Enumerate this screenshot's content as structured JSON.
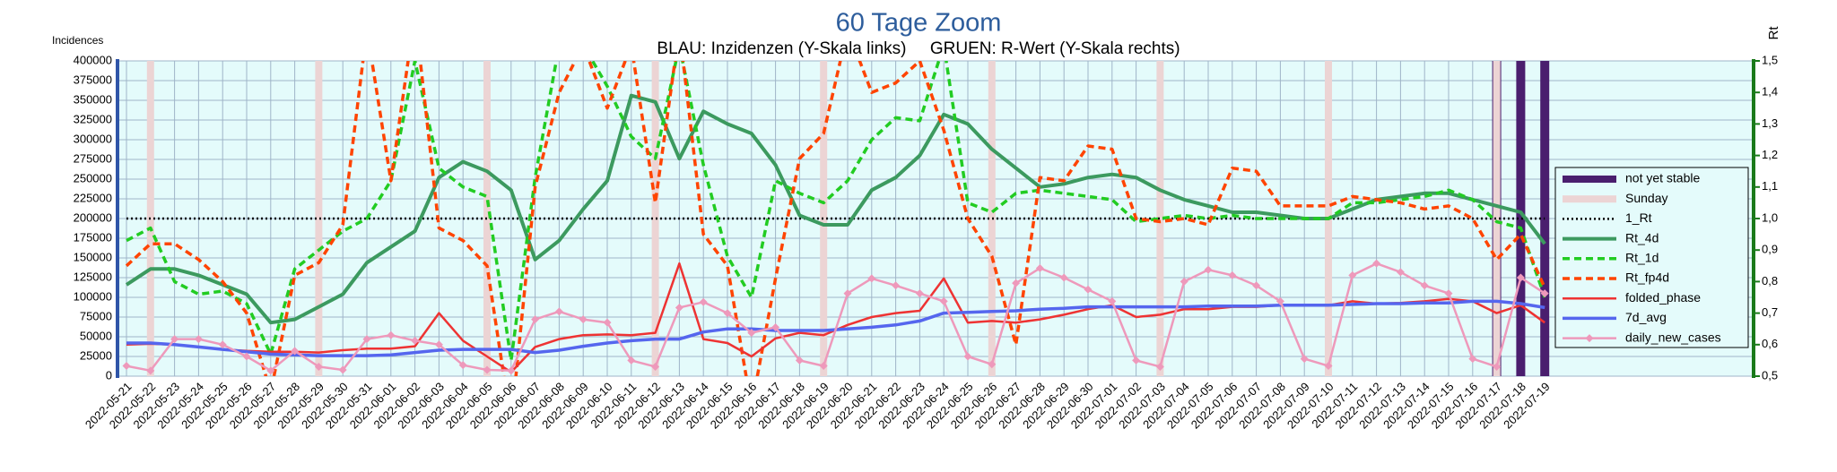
{
  "chart_data": {
    "type": "line",
    "title": "60 Tage Zoom",
    "subtitle": "BLAU: Inzidenzen (Y-Skala links)     GRUEN: R-Wert (Y-Skala rechts)",
    "y_label": "Incidences",
    "y2_label": "Rt",
    "categories": [
      "2022-05-21",
      "2022-05-22",
      "2022-05-23",
      "2022-05-24",
      "2022-05-25",
      "2022-05-26",
      "2022-05-27",
      "2022-05-28",
      "2022-05-29",
      "2022-05-30",
      "2022-05-31",
      "2022-06-01",
      "2022-06-02",
      "2022-06-03",
      "2022-06-04",
      "2022-06-05",
      "2022-06-06",
      "2022-06-07",
      "2022-06-08",
      "2022-06-09",
      "2022-06-10",
      "2022-06-11",
      "2022-06-12",
      "2022-06-13",
      "2022-06-14",
      "2022-06-15",
      "2022-06-16",
      "2022-06-17",
      "2022-06-18",
      "2022-06-19",
      "2022-06-20",
      "2022-06-21",
      "2022-06-22",
      "2022-06-23",
      "2022-06-24",
      "2022-06-25",
      "2022-06-26",
      "2022-06-27",
      "2022-06-28",
      "2022-06-29",
      "2022-06-30",
      "2022-07-01",
      "2022-07-02",
      "2022-07-03",
      "2022-07-04",
      "2022-07-05",
      "2022-07-06",
      "2022-07-07",
      "2022-07-08",
      "2022-07-09",
      "2022-07-10",
      "2022-07-11",
      "2022-07-12",
      "2022-07-13",
      "2022-07-14",
      "2022-07-15",
      "2022-07-16",
      "2022-07-17",
      "2022-07-18",
      "2022-07-19"
    ],
    "ylim": [
      0,
      400000
    ],
    "yticks": [
      0,
      25000,
      50000,
      75000,
      100000,
      125000,
      150000,
      175000,
      200000,
      225000,
      250000,
      275000,
      300000,
      325000,
      350000,
      375000,
      400000
    ],
    "y2lim": [
      0.5,
      1.5
    ],
    "y2ticks": [
      {
        "value": 0.5,
        "label": "0,5"
      },
      {
        "value": 0.6,
        "label": "0,6"
      },
      {
        "value": 0.7,
        "label": "0,7"
      },
      {
        "value": 0.8,
        "label": "0,8"
      },
      {
        "value": 0.9,
        "label": "0,9"
      },
      {
        "value": 1.0,
        "label": "1,0"
      },
      {
        "value": 1.1,
        "label": "1,1"
      },
      {
        "value": 1.2,
        "label": "1,2"
      },
      {
        "value": 1.3,
        "label": "1,3"
      },
      {
        "value": 1.4,
        "label": "1,4"
      },
      {
        "value": 1.5,
        "label": "1,5"
      }
    ],
    "grid": true,
    "legend": "right",
    "series": [
      {
        "name": "not yet stable",
        "kind": "bar",
        "color": "#4a1e6e",
        "axis": "y",
        "values": [
          null,
          null,
          null,
          null,
          null,
          null,
          null,
          null,
          null,
          null,
          null,
          null,
          null,
          null,
          null,
          null,
          null,
          null,
          null,
          null,
          null,
          null,
          null,
          null,
          null,
          null,
          null,
          null,
          null,
          null,
          null,
          null,
          null,
          null,
          null,
          null,
          null,
          null,
          null,
          null,
          null,
          null,
          null,
          null,
          null,
          null,
          null,
          null,
          null,
          null,
          null,
          null,
          null,
          null,
          null,
          null,
          null,
          400000,
          400000,
          400000
        ]
      },
      {
        "name": "Sunday",
        "kind": "bar",
        "color": "#ecd4d4",
        "axis": "y",
        "values": [
          null,
          400000,
          null,
          null,
          null,
          null,
          null,
          null,
          400000,
          null,
          null,
          null,
          null,
          null,
          null,
          400000,
          null,
          null,
          null,
          null,
          null,
          null,
          400000,
          null,
          null,
          null,
          null,
          null,
          null,
          400000,
          null,
          null,
          null,
          null,
          null,
          null,
          400000,
          null,
          null,
          null,
          null,
          null,
          null,
          400000,
          null,
          null,
          null,
          null,
          null,
          null,
          400000,
          null,
          null,
          null,
          null,
          null,
          null,
          400000,
          null,
          null
        ]
      },
      {
        "name": "1_Rt",
        "kind": "line",
        "dash": "dotted",
        "width": 2.5,
        "color": "#000000",
        "axis": "y2",
        "values": [
          1,
          1,
          1,
          1,
          1,
          1,
          1,
          1,
          1,
          1,
          1,
          1,
          1,
          1,
          1,
          1,
          1,
          1,
          1,
          1,
          1,
          1,
          1,
          1,
          1,
          1,
          1,
          1,
          1,
          1,
          1,
          1,
          1,
          1,
          1,
          1,
          1,
          1,
          1,
          1,
          1,
          1,
          1,
          1,
          1,
          1,
          1,
          1,
          1,
          1,
          1,
          1,
          1,
          1,
          1,
          1,
          1,
          1,
          1,
          1
        ]
      },
      {
        "name": "Rt_4d",
        "kind": "line",
        "width": 4,
        "color": "#3c9a5f",
        "axis": "y2",
        "values": [
          0.79,
          0.84,
          0.84,
          0.82,
          0.79,
          0.76,
          0.67,
          0.68,
          0.72,
          0.76,
          0.86,
          0.91,
          0.96,
          1.13,
          1.18,
          1.15,
          1.09,
          0.87,
          0.93,
          1.03,
          1.12,
          1.39,
          1.37,
          1.19,
          1.34,
          1.3,
          1.27,
          1.17,
          1.01,
          0.98,
          0.98,
          1.09,
          1.13,
          1.2,
          1.33,
          1.3,
          1.22,
          1.16,
          1.1,
          1.11,
          1.13,
          1.14,
          1.13,
          1.09,
          1.06,
          1.04,
          1.02,
          1.02,
          1.01,
          1.0,
          1.0,
          1.03,
          1.06,
          1.07,
          1.08,
          1.08,
          1.06,
          1.04,
          1.02,
          0.92
        ]
      },
      {
        "name": "Rt_1d",
        "kind": "line",
        "dash": "dashed",
        "width": 3.5,
        "color": "#22cc22",
        "axis": "y2",
        "values": [
          0.93,
          0.97,
          0.8,
          0.76,
          0.77,
          0.73,
          0.57,
          0.84,
          0.9,
          0.96,
          1.0,
          1.12,
          1.5,
          1.16,
          1.1,
          1.07,
          0.55,
          1.13,
          1.55,
          1.55,
          1.42,
          1.26,
          1.19,
          1.55,
          1.17,
          0.88,
          0.75,
          1.12,
          1.08,
          1.05,
          1.12,
          1.25,
          1.32,
          1.31,
          1.55,
          1.05,
          1.02,
          1.08,
          1.09,
          1.08,
          1.07,
          1.06,
          0.99,
          1.0,
          1.01,
          1.0,
          1.01,
          1.0,
          1.0,
          1.0,
          1.0,
          1.05,
          1.05,
          1.06,
          1.07,
          1.09,
          1.06,
          0.99,
          0.97,
          0.75
        ]
      },
      {
        "name": "Rt_fp4d",
        "kind": "line",
        "dash": "dashed",
        "width": 3.5,
        "color": "#ff4400",
        "axis": "y2",
        "values": [
          0.85,
          0.92,
          0.92,
          0.87,
          0.8,
          0.7,
          0.45,
          0.82,
          0.86,
          0.98,
          1.6,
          1.12,
          1.65,
          0.97,
          0.93,
          0.85,
          0.35,
          1.1,
          1.4,
          1.55,
          1.35,
          1.55,
          1.05,
          1.6,
          0.95,
          0.85,
          0.4,
          0.81,
          1.19,
          1.27,
          1.6,
          1.4,
          1.43,
          1.5,
          1.28,
          1.0,
          0.88,
          0.6,
          1.13,
          1.12,
          1.23,
          1.22,
          1.0,
          0.99,
          1.0,
          0.98,
          1.16,
          1.15,
          1.04,
          1.04,
          1.04,
          1.07,
          1.06,
          1.05,
          1.03,
          1.04,
          1.0,
          0.87,
          0.95,
          0.78
        ]
      },
      {
        "name": "folded_phase",
        "kind": "line",
        "width": 2.5,
        "color": "#ee3333",
        "axis": "y",
        "values": [
          40000,
          41000,
          40000,
          37000,
          34000,
          32000,
          31000,
          31000,
          30000,
          33000,
          35000,
          35000,
          38000,
          80000,
          45000,
          25000,
          5000,
          37000,
          47000,
          52000,
          53000,
          52000,
          55000,
          143000,
          47000,
          42000,
          25000,
          48000,
          55000,
          52000,
          65000,
          75000,
          80000,
          83000,
          124000,
          68000,
          70000,
          68000,
          72000,
          78000,
          85000,
          90000,
          75000,
          78000,
          85000,
          85000,
          88000,
          88000,
          90000,
          90000,
          90000,
          95000,
          92000,
          93000,
          95000,
          98000,
          95000,
          80000,
          90000,
          68000
        ]
      },
      {
        "name": "7d_avg",
        "kind": "line",
        "width": 3.5,
        "color": "#5566ee",
        "axis": "y",
        "values": [
          42000,
          42000,
          40000,
          37000,
          34000,
          31000,
          28000,
          27000,
          26000,
          26000,
          26000,
          27000,
          30000,
          33000,
          34000,
          34000,
          34000,
          30000,
          33000,
          38000,
          42000,
          45000,
          47000,
          47000,
          56000,
          60000,
          60000,
          58000,
          58000,
          58000,
          60000,
          62000,
          65000,
          70000,
          80000,
          81000,
          82000,
          83000,
          85000,
          86000,
          88000,
          88000,
          88000,
          88000,
          88000,
          89000,
          89000,
          89000,
          90000,
          90000,
          90000,
          91000,
          92000,
          92000,
          93000,
          93000,
          95000,
          95000,
          92000,
          87000
        ]
      },
      {
        "name": "daily_new_cases",
        "kind": "line",
        "marker": "diamond",
        "width": 2.5,
        "color": "#ee99bb",
        "axis": "y",
        "values": [
          13000,
          7000,
          47000,
          47000,
          40000,
          25000,
          7000,
          32000,
          12000,
          8000,
          47000,
          52000,
          45000,
          40000,
          14000,
          8000,
          7000,
          72000,
          82000,
          72000,
          68000,
          20000,
          12000,
          87000,
          94000,
          80000,
          55000,
          62000,
          20000,
          13000,
          105000,
          124000,
          115000,
          105000,
          95000,
          25000,
          15000,
          118000,
          137000,
          125000,
          110000,
          95000,
          20000,
          12000,
          120000,
          135000,
          128000,
          115000,
          95000,
          22000,
          13000,
          128000,
          143000,
          132000,
          115000,
          105000,
          22000,
          12000,
          125000,
          105000
        ]
      }
    ]
  }
}
